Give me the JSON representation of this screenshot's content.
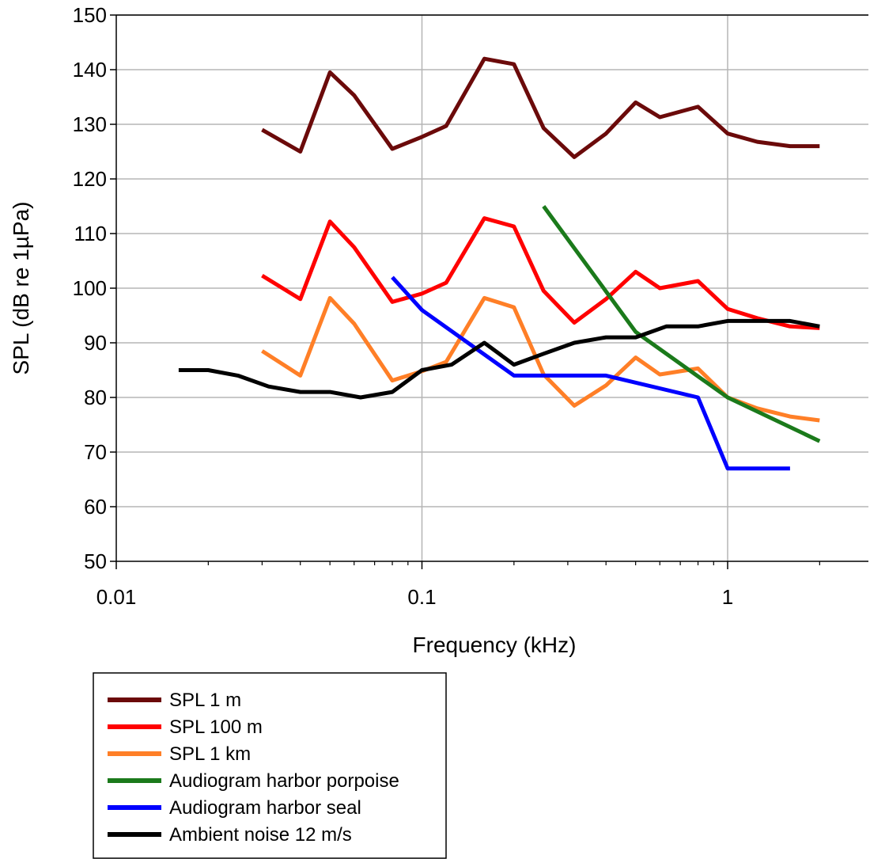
{
  "chart_data": {
    "type": "line",
    "xscale": "log",
    "xlabel": "Frequency (kHz)",
    "ylabel": "SPL (dB re 1µPa)",
    "xlim": [
      0.01,
      3
    ],
    "ylim": [
      50,
      150
    ],
    "xticks": [
      0.01,
      0.1,
      1
    ],
    "xtick_labels": [
      "0.01",
      "0.1",
      "1"
    ],
    "yticks": [
      50,
      60,
      70,
      80,
      90,
      100,
      110,
      120,
      130,
      140,
      150
    ],
    "ytick_labels": [
      "50",
      "60",
      "70",
      "80",
      "90",
      "100",
      "110",
      "120",
      "130",
      "140",
      "150"
    ],
    "grid": "vertical major gridlines at decades, horizontal gridlines every 10 dB",
    "legend_position": "bottom-left",
    "series": [
      {
        "name": "SPL 1 m",
        "color": "#6b0a0a",
        "x": [
          0.03,
          0.04,
          0.05,
          0.06,
          0.08,
          0.1,
          0.12,
          0.16,
          0.2,
          0.25,
          0.315,
          0.4,
          0.5,
          0.6,
          0.8,
          1,
          1.25,
          1.6,
          2
        ],
        "y": [
          129,
          125,
          139.5,
          135.3,
          125.5,
          127.7,
          129.7,
          142,
          141,
          129.3,
          124,
          128.3,
          134,
          131.3,
          133.2,
          128.3,
          126.8,
          126,
          126
        ]
      },
      {
        "name": "SPL 100 m",
        "color": "#ff0000",
        "x": [
          0.03,
          0.04,
          0.05,
          0.06,
          0.08,
          0.1,
          0.12,
          0.16,
          0.2,
          0.25,
          0.315,
          0.4,
          0.5,
          0.6,
          0.8,
          1,
          1.25,
          1.6,
          2
        ],
        "y": [
          102.3,
          98,
          112.2,
          107.5,
          97.5,
          99,
          101,
          112.8,
          111.3,
          99.5,
          93.7,
          98,
          103,
          100,
          101.3,
          96.2,
          94.5,
          93,
          92.7
        ]
      },
      {
        "name": "SPL 1 km",
        "color": "#ff7f27",
        "x": [
          0.03,
          0.04,
          0.05,
          0.06,
          0.08,
          0.1,
          0.12,
          0.16,
          0.2,
          0.25,
          0.315,
          0.4,
          0.5,
          0.6,
          0.8,
          1,
          1.25,
          1.6,
          2
        ],
        "y": [
          88.5,
          84,
          98.2,
          93.5,
          83.1,
          84.8,
          86.5,
          98.2,
          96.5,
          84.2,
          78.5,
          82.2,
          87.3,
          84.2,
          85.3,
          80,
          78,
          76.5,
          75.8
        ]
      },
      {
        "name": "Audiogram harbor porpoise",
        "color": "#1b7a1b",
        "x": [
          0.25,
          0.5,
          1,
          2
        ],
        "y": [
          115,
          92,
          80,
          72
        ]
      },
      {
        "name": "Audiogram harbor seal",
        "color": "#0000ff",
        "x": [
          0.08,
          0.1,
          0.2,
          0.4,
          0.8,
          1,
          1.6
        ],
        "y": [
          102,
          96,
          84,
          84,
          80,
          67,
          67
        ]
      },
      {
        "name": "Ambient noise 12 m/s",
        "color": "#000000",
        "x": [
          0.016,
          0.02,
          0.025,
          0.0315,
          0.04,
          0.05,
          0.063,
          0.08,
          0.1,
          0.125,
          0.16,
          0.2,
          0.25,
          0.315,
          0.4,
          0.5,
          0.63,
          0.8,
          1,
          1.25,
          1.6,
          2
        ],
        "y": [
          85,
          85,
          84,
          82,
          81,
          81,
          80,
          81,
          85,
          86,
          90,
          86,
          88,
          90,
          91,
          91,
          93,
          93,
          94,
          94,
          94,
          93
        ]
      }
    ]
  }
}
